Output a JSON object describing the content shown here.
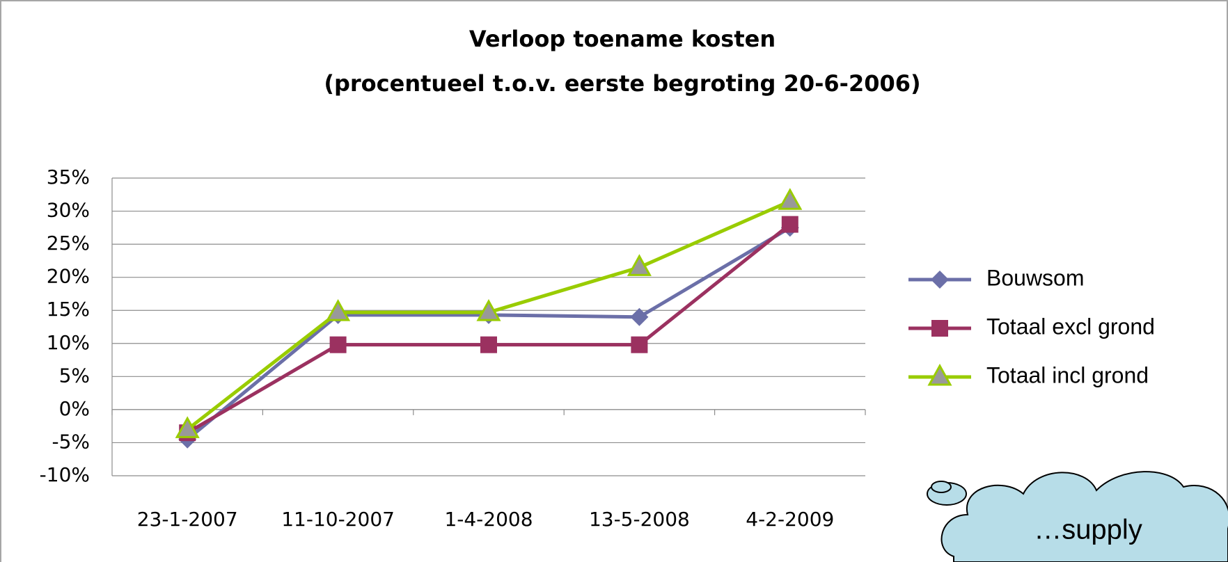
{
  "chart_data": {
    "type": "line",
    "title": "Verloop toename kosten",
    "subtitle": "(procentueel t.o.v. eerste begroting 20-6-2006)",
    "categories": [
      "23-1-2007",
      "11-10-2007",
      "1-4-2008",
      "13-5-2008",
      "4-2-2009"
    ],
    "series": [
      {
        "name": "Bouwsom",
        "color": "#6b6fa8",
        "marker": "diamond",
        "values": [
          -4.5,
          14.3,
          14.3,
          14,
          27.5
        ]
      },
      {
        "name": "Totaal excl grond",
        "color": "#9b3160",
        "marker": "square",
        "values": [
          -3.5,
          9.8,
          9.8,
          9.8,
          28
        ]
      },
      {
        "name": "Totaal incl grond",
        "color": "#99cc00",
        "marker": "triangle",
        "values": [
          -3,
          14.7,
          14.7,
          21.5,
          31.5
        ]
      }
    ],
    "ylim": [
      -10,
      35
    ],
    "yticks": [
      {
        "value": -10,
        "label": "-10%"
      },
      {
        "value": -5,
        "label": "-5%"
      },
      {
        "value": 0,
        "label": "0%"
      },
      {
        "value": 5,
        "label": "5%"
      },
      {
        "value": 10,
        "label": "10%"
      },
      {
        "value": 15,
        "label": "15%"
      },
      {
        "value": 20,
        "label": "20%"
      },
      {
        "value": 25,
        "label": "25%"
      },
      {
        "value": 30,
        "label": "30%"
      },
      {
        "value": 35,
        "label": "35%"
      }
    ],
    "grid": true,
    "legend": "right",
    "annotation": "…supply"
  }
}
